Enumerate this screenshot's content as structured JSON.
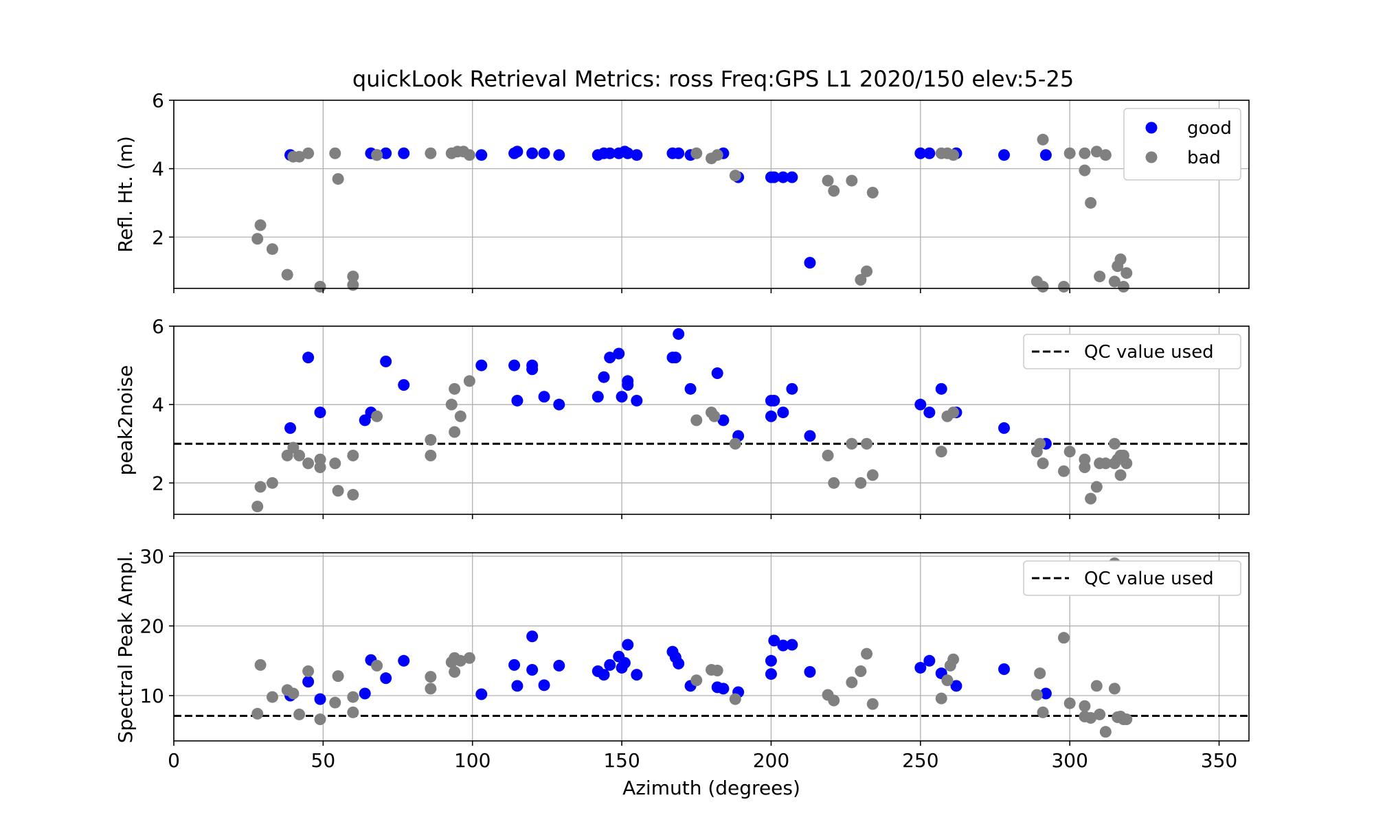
{
  "figure": {
    "title": "quickLook Retrieval Metrics: ross Freq:GPS L1 2020/150  elev:5-25"
  },
  "colors": {
    "good": "#0000ff",
    "bad": "#808080",
    "grid": "#b0b0b0",
    "qc_line": "#000000"
  },
  "chart_data": [
    {
      "type": "scatter",
      "ylabel": "Refl. Ht. (m)",
      "xlim": [
        0,
        360
      ],
      "ylim": [
        0.5,
        6.0
      ],
      "xticks": [
        0,
        50,
        100,
        150,
        200,
        250,
        300,
        350
      ],
      "yticks": [
        2,
        4,
        6
      ],
      "show_xtick_labels": false,
      "grid": true,
      "legend": {
        "placement": "top-right",
        "entries": [
          "good",
          "bad"
        ]
      },
      "series": [
        {
          "name": "good",
          "points": [
            [
              39,
              4.4
            ],
            [
              66,
              4.45
            ],
            [
              68,
              4.4
            ],
            [
              71,
              4.45
            ],
            [
              77,
              4.45
            ],
            [
              103,
              4.4
            ],
            [
              114,
              4.45
            ],
            [
              115,
              4.5
            ],
            [
              120,
              4.45
            ],
            [
              124,
              4.45
            ],
            [
              129,
              4.4
            ],
            [
              142,
              4.4
            ],
            [
              144,
              4.45
            ],
            [
              146,
              4.45
            ],
            [
              149,
              4.45
            ],
            [
              151,
              4.5
            ],
            [
              152,
              4.45
            ],
            [
              155,
              4.4
            ],
            [
              167,
              4.45
            ],
            [
              169,
              4.45
            ],
            [
              173,
              4.4
            ],
            [
              184,
              4.45
            ],
            [
              189,
              3.75
            ],
            [
              200,
              3.75
            ],
            [
              201,
              3.75
            ],
            [
              204,
              3.75
            ],
            [
              207,
              3.75
            ],
            [
              213,
              1.25
            ],
            [
              250,
              4.45
            ],
            [
              253,
              4.45
            ],
            [
              262,
              4.45
            ],
            [
              278,
              4.4
            ],
            [
              292,
              4.4
            ]
          ]
        },
        {
          "name": "bad",
          "points": [
            [
              28,
              1.95
            ],
            [
              29,
              2.35
            ],
            [
              33,
              1.65
            ],
            [
              38,
              0.9
            ],
            [
              40,
              4.35
            ],
            [
              42,
              4.35
            ],
            [
              45,
              4.45
            ],
            [
              49,
              0.55
            ],
            [
              54,
              4.45
            ],
            [
              55,
              3.7
            ],
            [
              60,
              0.85
            ],
            [
              60,
              0.6
            ],
            [
              68,
              4.4
            ],
            [
              86,
              4.45
            ],
            [
              93,
              4.45
            ],
            [
              95,
              4.5
            ],
            [
              97,
              4.5
            ],
            [
              99,
              4.4
            ],
            [
              175,
              4.45
            ],
            [
              180,
              4.3
            ],
            [
              182,
              4.4
            ],
            [
              188,
              3.8
            ],
            [
              219,
              3.65
            ],
            [
              221,
              3.35
            ],
            [
              227,
              3.65
            ],
            [
              230,
              0.75
            ],
            [
              232,
              1.0
            ],
            [
              234,
              3.3
            ],
            [
              257,
              4.45
            ],
            [
              259,
              4.45
            ],
            [
              261,
              4.4
            ],
            [
              289,
              0.7
            ],
            [
              291,
              0.55
            ],
            [
              291,
              4.85
            ],
            [
              298,
              0.55
            ],
            [
              300,
              4.45
            ],
            [
              305,
              4.45
            ],
            [
              305,
              3.95
            ],
            [
              307,
              3.0
            ],
            [
              309,
              4.5
            ],
            [
              310,
              0.85
            ],
            [
              312,
              4.4
            ],
            [
              315,
              0.7
            ],
            [
              316,
              1.15
            ],
            [
              317,
              1.35
            ],
            [
              318,
              0.55
            ],
            [
              319,
              0.95
            ]
          ]
        }
      ]
    },
    {
      "type": "scatter",
      "ylabel": "peak2noise",
      "xlim": [
        0,
        360
      ],
      "ylim": [
        1.2,
        6.0
      ],
      "xticks": [
        0,
        50,
        100,
        150,
        200,
        250,
        300,
        350
      ],
      "yticks": [
        2,
        4,
        6
      ],
      "show_xtick_labels": false,
      "grid": true,
      "qc_value": 3.0,
      "legend": {
        "placement": "top-right",
        "entries": [
          "QC value used"
        ]
      },
      "series": [
        {
          "name": "good",
          "points": [
            [
              39,
              3.4
            ],
            [
              45,
              5.2
            ],
            [
              49,
              3.8
            ],
            [
              64,
              3.6
            ],
            [
              66,
              3.8
            ],
            [
              71,
              5.1
            ],
            [
              77,
              4.5
            ],
            [
              103,
              5.0
            ],
            [
              114,
              5.0
            ],
            [
              115,
              4.1
            ],
            [
              120,
              5.0
            ],
            [
              120,
              4.9
            ],
            [
              124,
              4.2
            ],
            [
              129,
              4.0
            ],
            [
              142,
              4.2
            ],
            [
              144,
              4.7
            ],
            [
              146,
              5.2
            ],
            [
              149,
              5.3
            ],
            [
              150,
              4.2
            ],
            [
              152,
              4.6
            ],
            [
              152,
              4.5
            ],
            [
              155,
              4.1
            ],
            [
              167,
              5.2
            ],
            [
              168,
              5.2
            ],
            [
              169,
              5.8
            ],
            [
              173,
              4.4
            ],
            [
              182,
              4.8
            ],
            [
              184,
              3.6
            ],
            [
              189,
              3.2
            ],
            [
              200,
              4.1
            ],
            [
              200,
              3.7
            ],
            [
              201,
              4.1
            ],
            [
              204,
              3.8
            ],
            [
              207,
              4.4
            ],
            [
              213,
              3.2
            ],
            [
              250,
              4.0
            ],
            [
              253,
              3.8
            ],
            [
              257,
              4.4
            ],
            [
              262,
              3.8
            ],
            [
              278,
              3.4
            ],
            [
              292,
              3.0
            ]
          ]
        },
        {
          "name": "bad",
          "points": [
            [
              28,
              1.4
            ],
            [
              29,
              1.9
            ],
            [
              33,
              2.0
            ],
            [
              38,
              2.7
            ],
            [
              40,
              2.9
            ],
            [
              42,
              2.7
            ],
            [
              45,
              2.5
            ],
            [
              49,
              2.4
            ],
            [
              49,
              2.6
            ],
            [
              54,
              2.5
            ],
            [
              55,
              1.8
            ],
            [
              60,
              2.7
            ],
            [
              60,
              1.7
            ],
            [
              68,
              3.7
            ],
            [
              86,
              3.1
            ],
            [
              86,
              2.7
            ],
            [
              93,
              4.0
            ],
            [
              94,
              4.4
            ],
            [
              94,
              3.3
            ],
            [
              96,
              3.7
            ],
            [
              99,
              4.6
            ],
            [
              175,
              3.6
            ],
            [
              180,
              3.8
            ],
            [
              181,
              3.7
            ],
            [
              188,
              3.0
            ],
            [
              219,
              2.7
            ],
            [
              221,
              2.0
            ],
            [
              227,
              3.0
            ],
            [
              230,
              2.0
            ],
            [
              232,
              3.0
            ],
            [
              234,
              2.2
            ],
            [
              257,
              2.8
            ],
            [
              259,
              3.7
            ],
            [
              261,
              3.8
            ],
            [
              289,
              2.8
            ],
            [
              290,
              3.0
            ],
            [
              291,
              2.5
            ],
            [
              298,
              2.3
            ],
            [
              300,
              2.8
            ],
            [
              305,
              2.6
            ],
            [
              305,
              2.4
            ],
            [
              307,
              1.6
            ],
            [
              309,
              1.9
            ],
            [
              310,
              2.5
            ],
            [
              312,
              2.5
            ],
            [
              315,
              3.0
            ],
            [
              315,
              2.5
            ],
            [
              316,
              2.6
            ],
            [
              317,
              2.7
            ],
            [
              317,
              2.2
            ],
            [
              318,
              2.7
            ],
            [
              319,
              2.5
            ]
          ]
        }
      ]
    },
    {
      "type": "scatter",
      "ylabel": "Spectral Peak Ampl.",
      "xlabel": "Azimuth (degrees)",
      "xlim": [
        0,
        360
      ],
      "ylim": [
        3.5,
        30.5
      ],
      "xticks": [
        0,
        50,
        100,
        150,
        200,
        250,
        300,
        350
      ],
      "yticks": [
        10,
        20,
        30
      ],
      "show_xtick_labels": true,
      "grid": true,
      "qc_value": 7.1,
      "legend": {
        "placement": "top-right",
        "entries": [
          "QC value used"
        ]
      },
      "series": [
        {
          "name": "good",
          "points": [
            [
              39,
              10.0
            ],
            [
              45,
              12.0
            ],
            [
              49,
              9.5
            ],
            [
              64,
              10.3
            ],
            [
              66,
              15.1
            ],
            [
              71,
              12.5
            ],
            [
              77,
              15.0
            ],
            [
              103,
              10.2
            ],
            [
              114,
              14.4
            ],
            [
              115,
              11.4
            ],
            [
              120,
              18.5
            ],
            [
              120,
              13.7
            ],
            [
              124,
              11.5
            ],
            [
              129,
              14.3
            ],
            [
              142,
              13.5
            ],
            [
              144,
              13.0
            ],
            [
              146,
              14.4
            ],
            [
              149,
              15.6
            ],
            [
              150,
              14.0
            ],
            [
              151,
              14.7
            ],
            [
              152,
              17.3
            ],
            [
              155,
              13.0
            ],
            [
              167,
              16.3
            ],
            [
              168,
              15.5
            ],
            [
              169,
              14.6
            ],
            [
              173,
              11.4
            ],
            [
              182,
              11.2
            ],
            [
              184,
              11.0
            ],
            [
              189,
              10.5
            ],
            [
              200,
              15.0
            ],
            [
              200,
              13.1
            ],
            [
              201,
              17.9
            ],
            [
              204,
              17.2
            ],
            [
              207,
              17.3
            ],
            [
              213,
              13.4
            ],
            [
              250,
              14.0
            ],
            [
              253,
              15.0
            ],
            [
              257,
              13.2
            ],
            [
              262,
              11.4
            ],
            [
              278,
              13.8
            ],
            [
              292,
              10.3
            ]
          ]
        },
        {
          "name": "bad",
          "points": [
            [
              28,
              7.4
            ],
            [
              29,
              14.4
            ],
            [
              33,
              9.8
            ],
            [
              38,
              10.8
            ],
            [
              40,
              10.3
            ],
            [
              42,
              7.3
            ],
            [
              45,
              13.5
            ],
            [
              49,
              6.6
            ],
            [
              54,
              9.0
            ],
            [
              55,
              12.8
            ],
            [
              60,
              9.8
            ],
            [
              60,
              7.6
            ],
            [
              68,
              14.3
            ],
            [
              86,
              12.7
            ],
            [
              86,
              11.0
            ],
            [
              93,
              14.8
            ],
            [
              94,
              15.4
            ],
            [
              94,
              13.4
            ],
            [
              96,
              15.0
            ],
            [
              99,
              15.4
            ],
            [
              175,
              12.2
            ],
            [
              180,
              13.7
            ],
            [
              182,
              13.6
            ],
            [
              188,
              9.5
            ],
            [
              219,
              10.1
            ],
            [
              221,
              9.3
            ],
            [
              227,
              11.9
            ],
            [
              230,
              13.5
            ],
            [
              232,
              16.0
            ],
            [
              234,
              8.8
            ],
            [
              257,
              9.6
            ],
            [
              259,
              12.2
            ],
            [
              260,
              14.3
            ],
            [
              261,
              15.2
            ],
            [
              289,
              10.1
            ],
            [
              290,
              13.2
            ],
            [
              291,
              7.6
            ],
            [
              298,
              18.3
            ],
            [
              300,
              8.9
            ],
            [
              305,
              8.5
            ],
            [
              305,
              7.0
            ],
            [
              307,
              6.8
            ],
            [
              309,
              11.4
            ],
            [
              310,
              7.3
            ],
            [
              312,
              4.8
            ],
            [
              315,
              29.0
            ],
            [
              315,
              11.0
            ],
            [
              316,
              6.9
            ],
            [
              317,
              7.0
            ],
            [
              318,
              6.6
            ],
            [
              319,
              6.6
            ]
          ]
        }
      ]
    }
  ]
}
